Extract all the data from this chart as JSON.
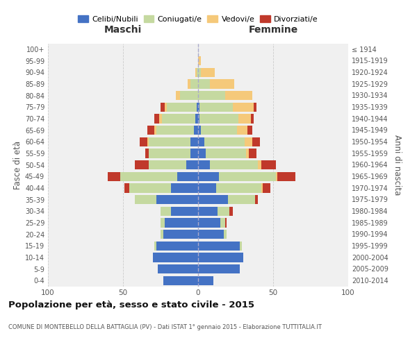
{
  "age_groups": [
    "0-4",
    "5-9",
    "10-14",
    "15-19",
    "20-24",
    "25-29",
    "30-34",
    "35-39",
    "40-44",
    "45-49",
    "50-54",
    "55-59",
    "60-64",
    "65-69",
    "70-74",
    "75-79",
    "80-84",
    "85-89",
    "90-94",
    "95-99",
    "100+"
  ],
  "birth_years": [
    "2010-2014",
    "2005-2009",
    "2000-2004",
    "1995-1999",
    "1990-1994",
    "1985-1989",
    "1980-1984",
    "1975-1979",
    "1970-1974",
    "1965-1969",
    "1960-1964",
    "1955-1959",
    "1950-1954",
    "1945-1949",
    "1940-1944",
    "1935-1939",
    "1930-1934",
    "1925-1929",
    "1920-1924",
    "1915-1919",
    "≤ 1914"
  ],
  "colors": {
    "celibe": "#4472C4",
    "coniugato": "#c5d9a0",
    "vedovo": "#f5c97a",
    "divorziato": "#c0392b"
  },
  "maschi": {
    "celibe": [
      23,
      27,
      30,
      28,
      23,
      22,
      18,
      28,
      18,
      14,
      8,
      5,
      5,
      3,
      2,
      1,
      0,
      0,
      0,
      0,
      0
    ],
    "coniugato": [
      0,
      0,
      0,
      1,
      2,
      3,
      7,
      14,
      28,
      38,
      25,
      28,
      28,
      25,
      22,
      20,
      12,
      5,
      1,
      0,
      0
    ],
    "vedovo": [
      0,
      0,
      0,
      0,
      0,
      0,
      0,
      0,
      0,
      0,
      0,
      0,
      1,
      1,
      2,
      1,
      3,
      2,
      1,
      0,
      0
    ],
    "divorziato": [
      0,
      0,
      0,
      0,
      0,
      0,
      0,
      0,
      3,
      8,
      9,
      2,
      5,
      5,
      3,
      3,
      0,
      0,
      0,
      0,
      0
    ]
  },
  "femmine": {
    "nubile": [
      10,
      28,
      30,
      28,
      17,
      15,
      13,
      20,
      12,
      14,
      8,
      5,
      4,
      2,
      1,
      1,
      0,
      0,
      0,
      0,
      0
    ],
    "coniugata": [
      0,
      0,
      0,
      1,
      2,
      3,
      8,
      18,
      30,
      38,
      32,
      27,
      27,
      24,
      26,
      22,
      18,
      8,
      2,
      0,
      0
    ],
    "vedova": [
      0,
      0,
      0,
      0,
      0,
      0,
      0,
      0,
      1,
      1,
      2,
      2,
      5,
      7,
      8,
      14,
      18,
      16,
      9,
      2,
      0
    ],
    "divorziata": [
      0,
      0,
      0,
      0,
      0,
      1,
      2,
      2,
      5,
      12,
      10,
      5,
      5,
      3,
      2,
      2,
      0,
      0,
      0,
      0,
      0
    ]
  },
  "title": "Popolazione per età, sesso e stato civile - 2015",
  "subtitle": "COMUNE DI MONTEBELLO DELLA BATTAGLIA (PV) - Dati ISTAT 1° gennaio 2015 - Elaborazione TUTTITALIA.IT",
  "xlabel_left": "Maschi",
  "xlabel_right": "Femmine",
  "ylabel_left": "Fasce di età",
  "ylabel_right": "Anni di nascita",
  "xlim": 100,
  "bg_color": "#f0f0f0",
  "grid_color": "#cccccc"
}
